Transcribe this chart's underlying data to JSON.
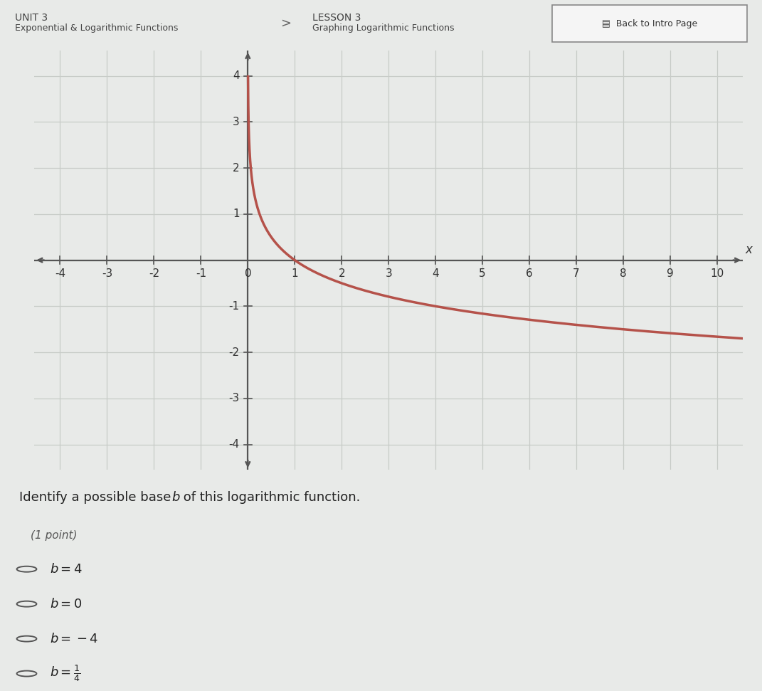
{
  "title_unit": "UNIT 3",
  "title_unit_sub": "Exponential & Logarithmic Functions",
  "title_lesson": "LESSON 3",
  "title_lesson_sub": "Graphing Logarithmic Functions",
  "title_button": "Back to Intro Page",
  "question": "Identify a possible base b of this logarithmic function.",
  "point_label": "(1 point)",
  "xmin": -4,
  "xmax": 10,
  "ymin": -4,
  "ymax": 4,
  "xticks": [
    -4,
    -3,
    -2,
    -1,
    0,
    1,
    2,
    3,
    4,
    5,
    6,
    7,
    8,
    9,
    10
  ],
  "yticks": [
    -4,
    -3,
    -2,
    -1,
    0,
    1,
    2,
    3,
    4
  ],
  "base": 0.25,
  "curve_color": "#b5524a",
  "curve_linewidth": 2.5,
  "grid_color": "#c8ccc8",
  "plot_bg_color": "#d8ddd8",
  "outer_bg_color": "#e8eae8",
  "header_bg_color": "#d0d4d0",
  "header_text_color": "#444444",
  "button_bg_color": "#f5f5f5",
  "button_border_color": "#888888",
  "button_text_color": "#333333",
  "axis_color": "#555555",
  "tick_color": "#333333",
  "question_text_color": "#222222",
  "choice_text_color": "#222222",
  "font_size_header": 10,
  "font_size_question": 13,
  "font_size_choices": 13,
  "font_size_ticks": 11,
  "choices_math": [
    "b = 4",
    "b = 0",
    "b = -4",
    "b = 1/4"
  ]
}
